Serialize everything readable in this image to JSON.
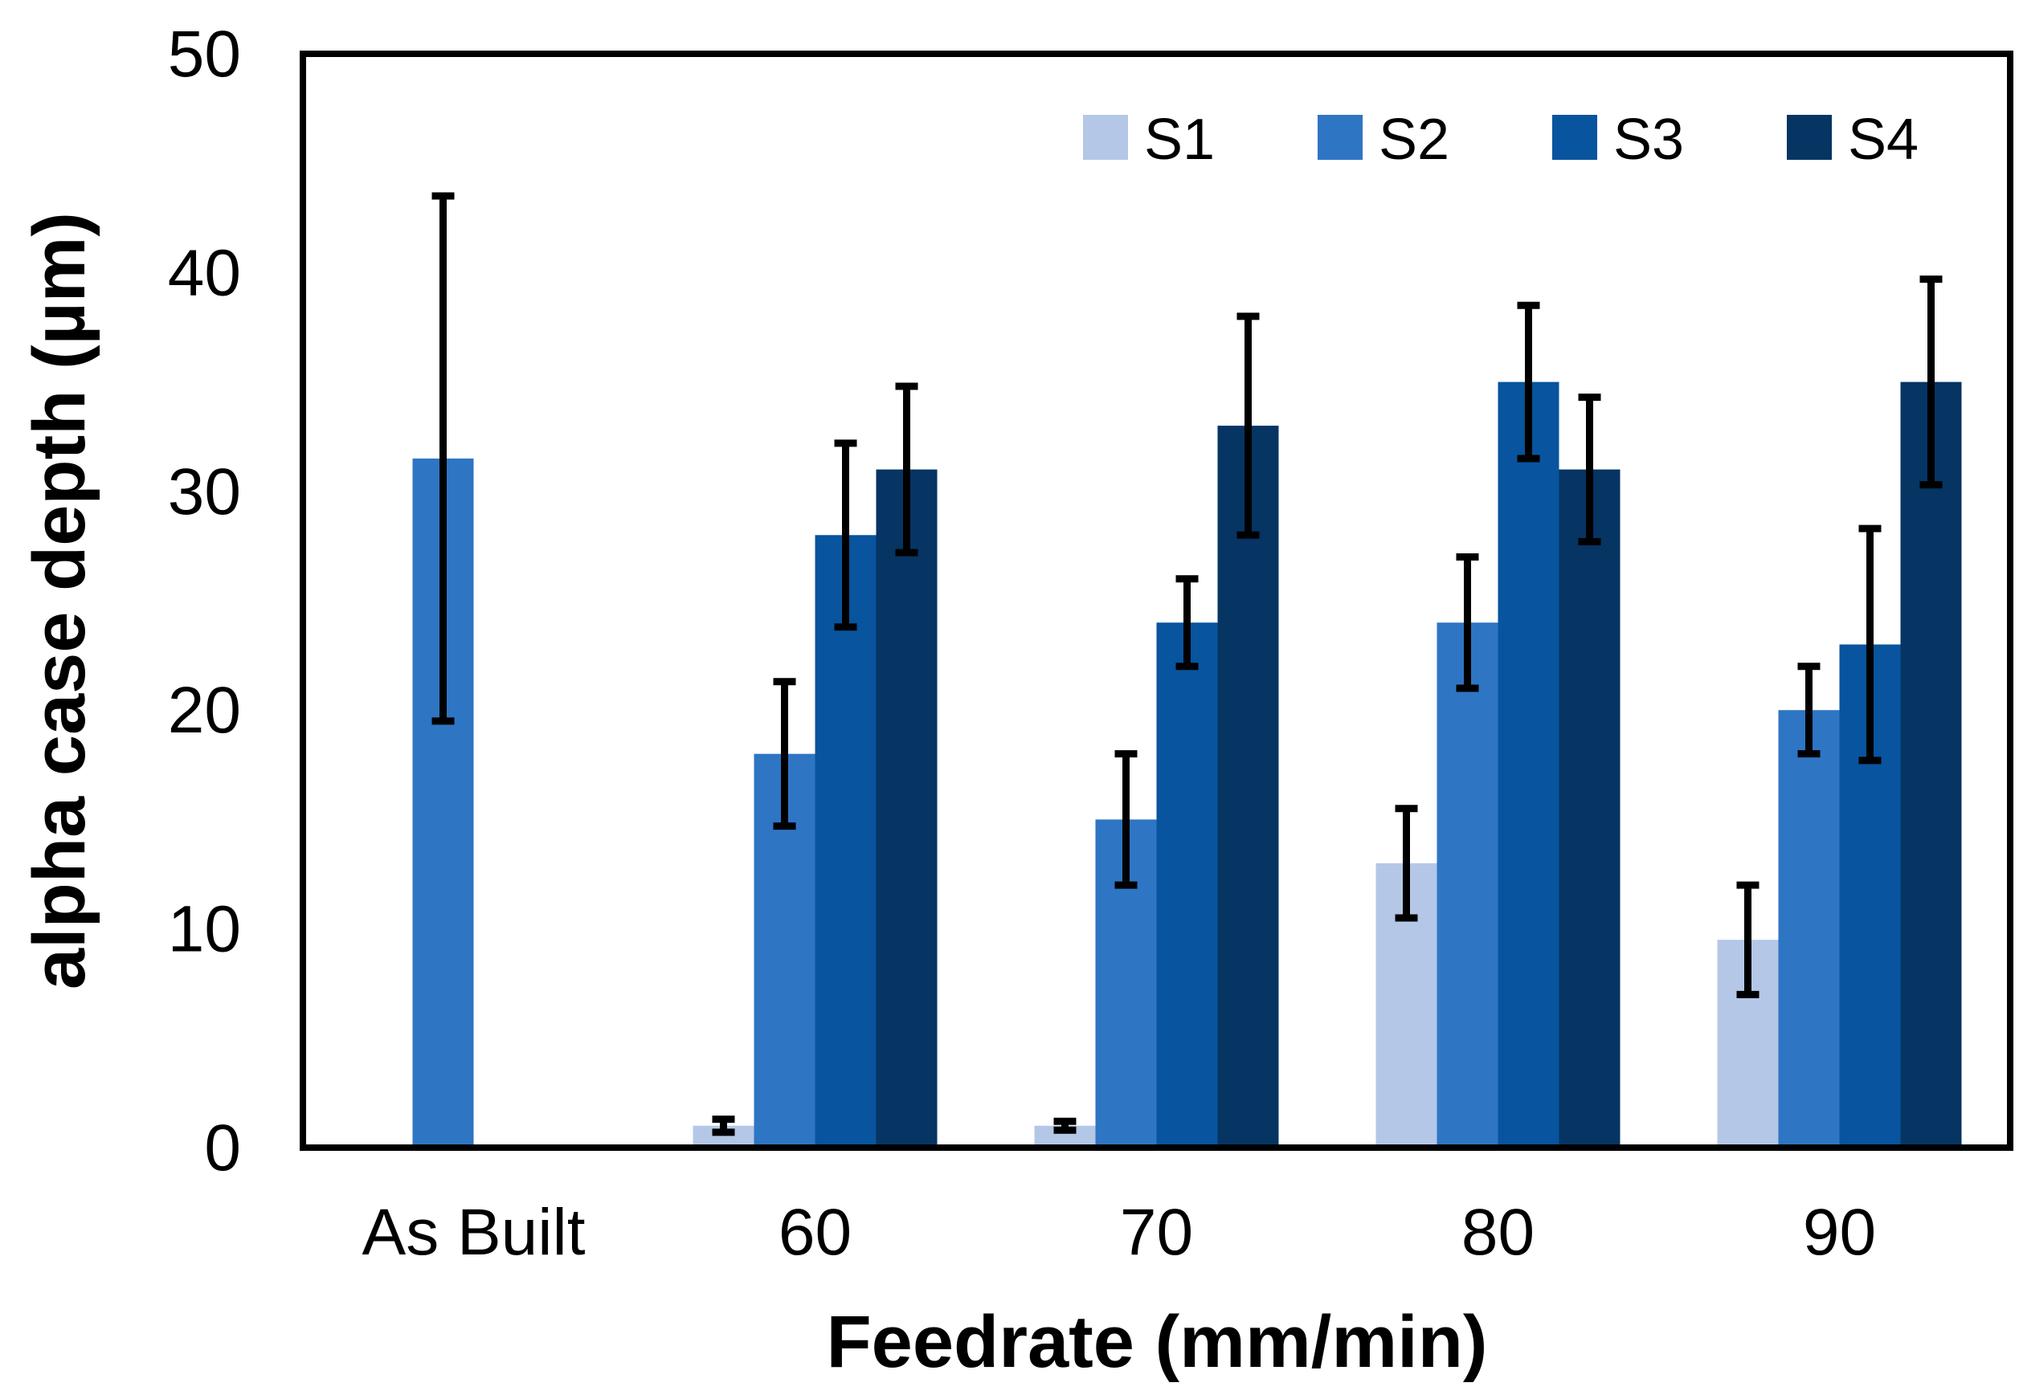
{
  "chart_data": {
    "type": "bar",
    "title": "",
    "xlabel": "Feedrate (mm/min)",
    "ylabel": "alpha case depth (µm)",
    "ylim": [
      0,
      50
    ],
    "yticks": [
      0,
      10,
      20,
      30,
      40,
      50
    ],
    "grid": false,
    "legend_position": "top-right",
    "categories": [
      "As Built",
      "60",
      "70",
      "80",
      "90"
    ],
    "series": [
      {
        "name": "S1",
        "color": "#b4c7e7",
        "values": [
          null,
          1.0,
          1.0,
          13.0,
          9.5
        ],
        "errors": [
          null,
          0.3,
          0.2,
          2.5,
          2.5
        ]
      },
      {
        "name": "S2",
        "color": "#2e75c4",
        "values": [
          31.5,
          18.0,
          15.0,
          24.0,
          20.0
        ],
        "errors": [
          12.0,
          3.3,
          3.0,
          3.0,
          2.0
        ]
      },
      {
        "name": "S3",
        "color": "#08549e",
        "values": [
          null,
          28.0,
          24.0,
          35.0,
          23.0
        ],
        "errors": [
          null,
          4.2,
          2.0,
          3.5,
          5.3
        ]
      },
      {
        "name": "S4",
        "color": "#063463",
        "values": [
          null,
          31.0,
          33.0,
          31.0,
          35.0
        ],
        "errors": [
          null,
          3.8,
          5.0,
          3.3,
          4.7
        ]
      }
    ]
  }
}
